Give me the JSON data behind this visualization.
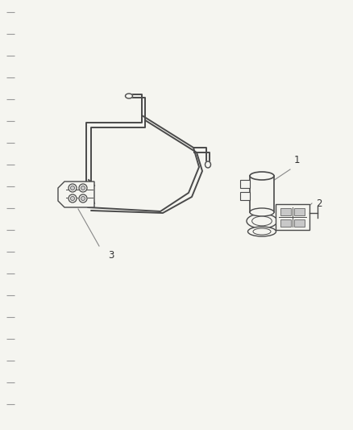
{
  "background_color": "#f5f5f0",
  "figure_width": 4.38,
  "figure_height": 5.33,
  "dpi": 100,
  "line_color": "#4a4a4a",
  "label_color": "#333333",
  "label_fontsize": 8.5
}
